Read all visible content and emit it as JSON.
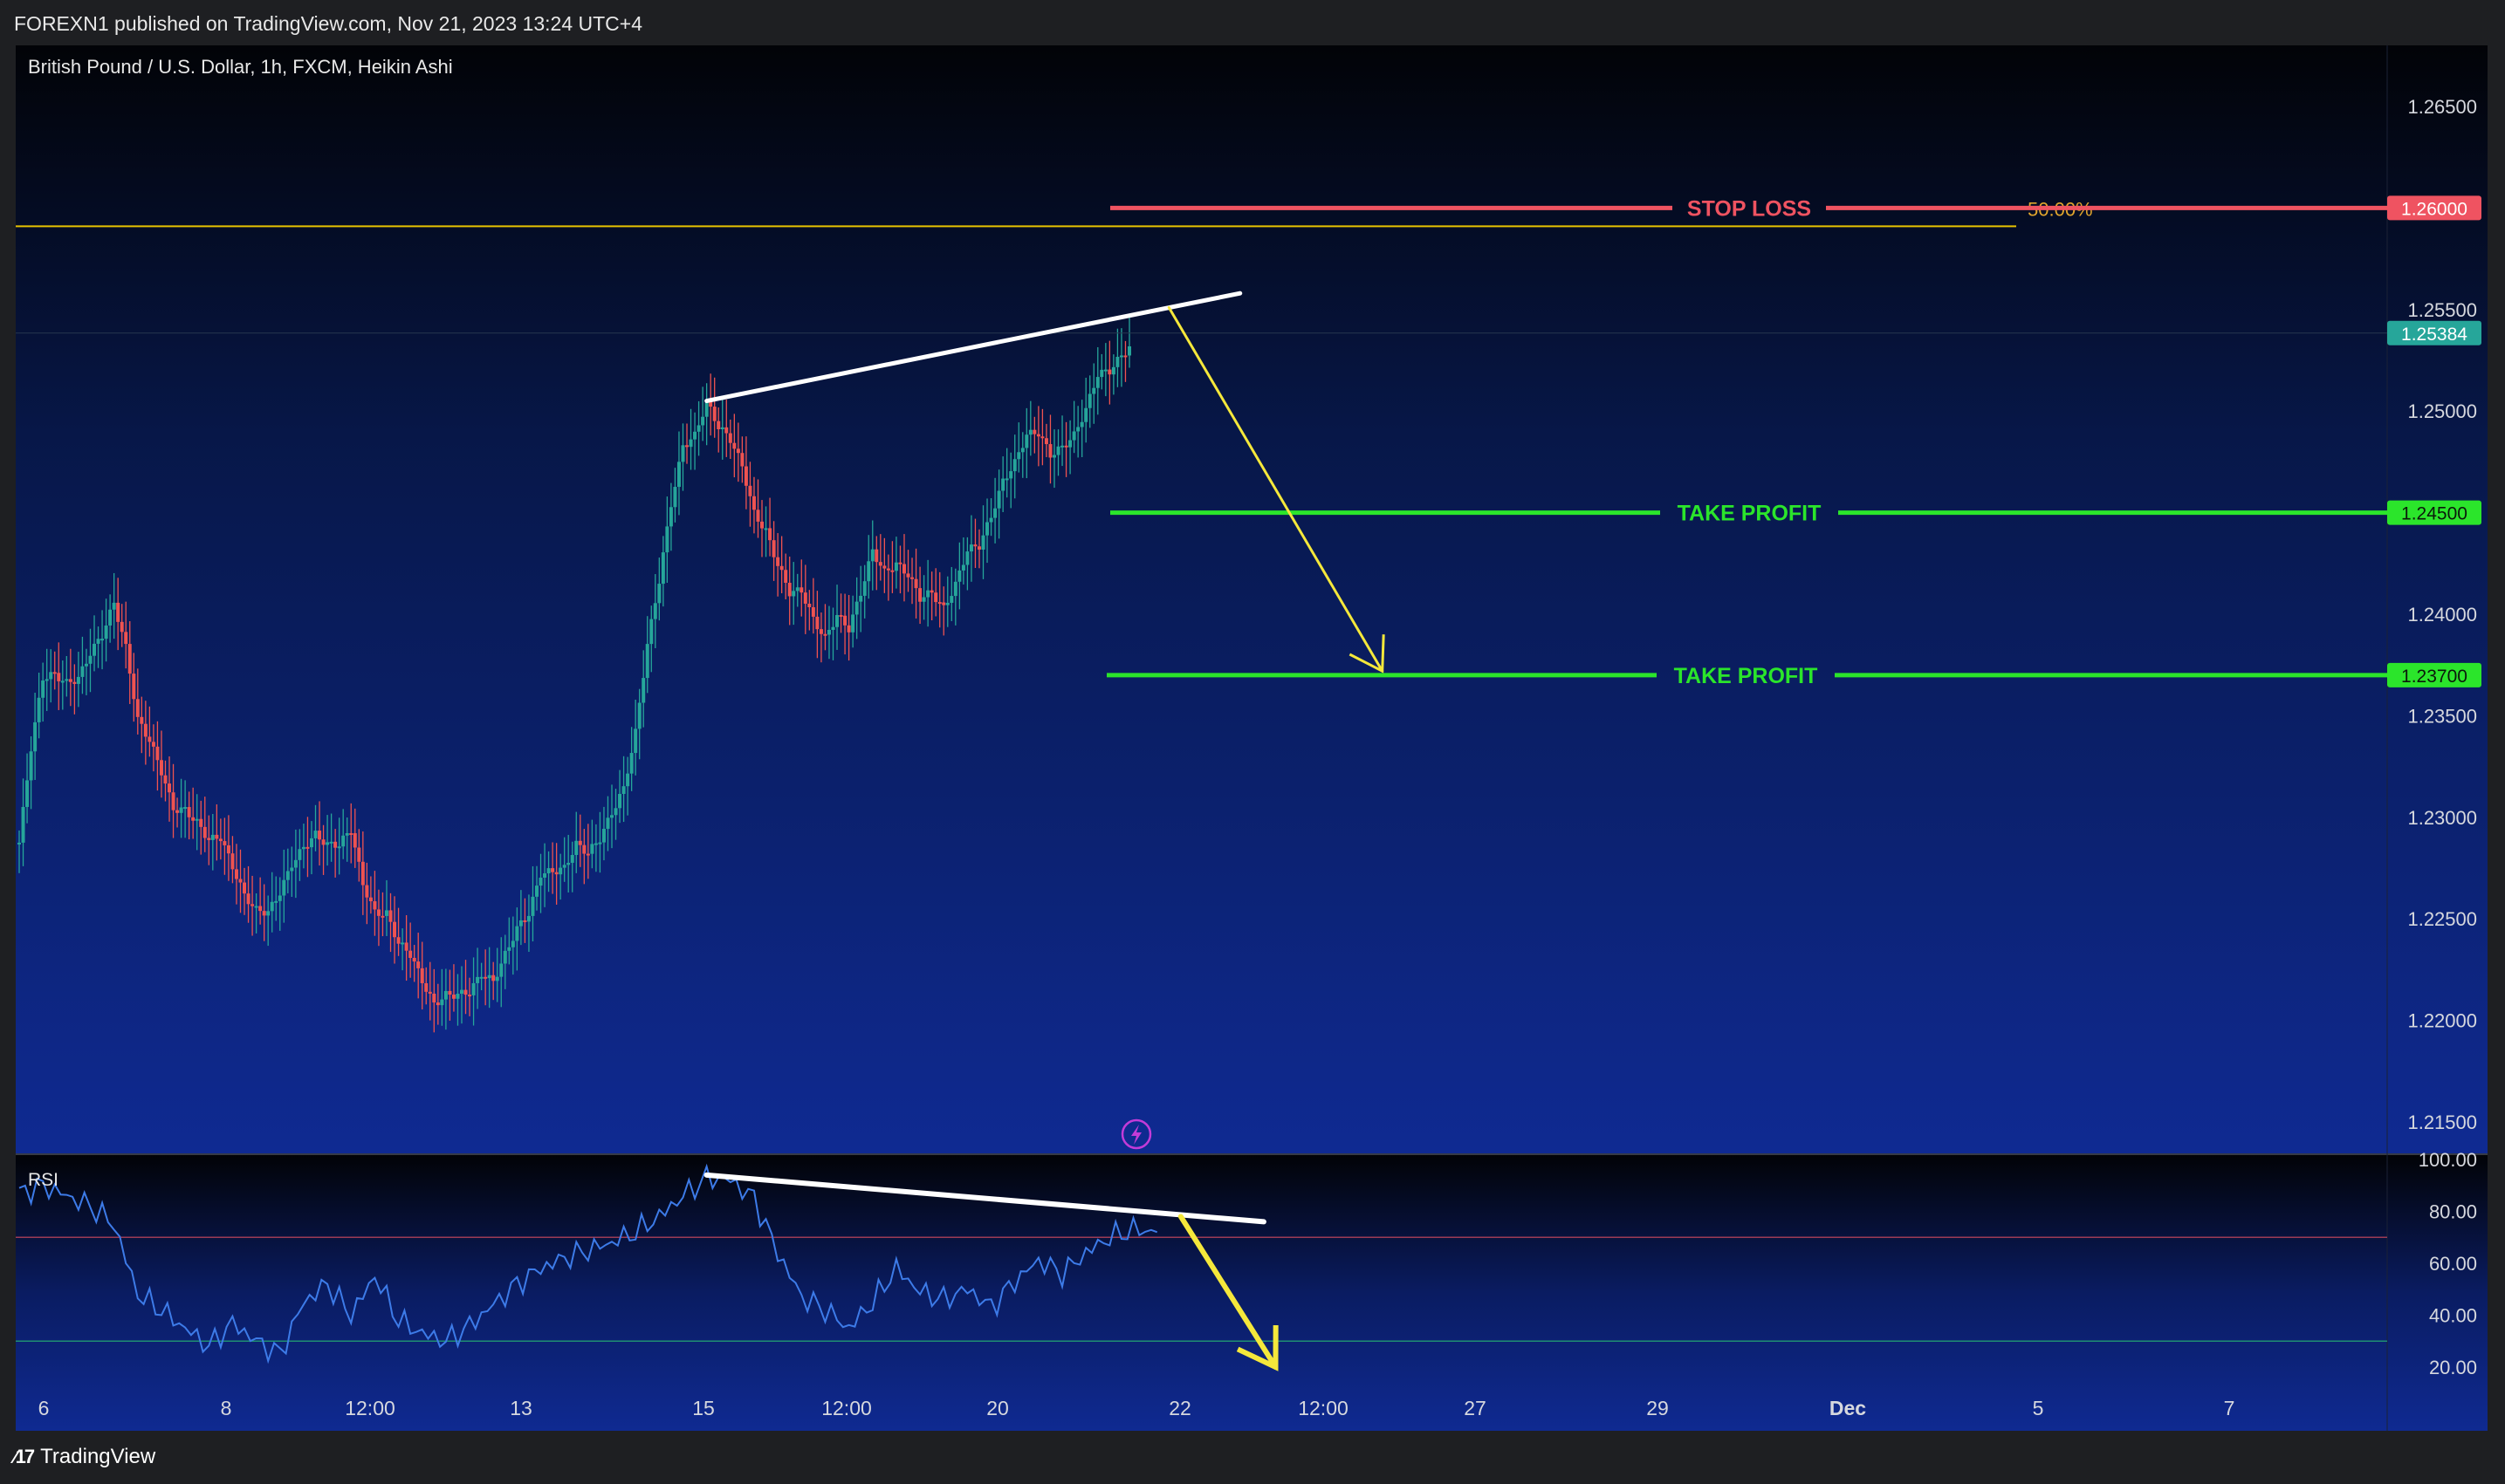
{
  "header": {
    "publish_line": "FOREXN1 published on TradingView.com, Nov 21, 2023 13:24 UTC+4"
  },
  "footer": {
    "brand_icon": "tradingview-logo-icon",
    "brand_label": "TradingView"
  },
  "colors": {
    "background_top": "#020307",
    "background_bottom": "#0f2a92",
    "up_candle": "#26a69a",
    "down_candle": "#ef5350",
    "stop_loss": "#ef5361",
    "take_profit": "#2be52b",
    "trend_line": "#ffffff",
    "arrow": "#f5e83b",
    "fib_line": "#e6c200",
    "rsi_line": "#3d7be8",
    "last_price": "#26a69a"
  },
  "chart_data": [
    {
      "type": "candlestick",
      "title": "British Pound / U.S. Dollar, 1h, FXCM, Heikin Ashi",
      "symbol": "British Pound / U.S. Dollar",
      "interval": "1h",
      "source": "FXCM",
      "style": "Heikin Ashi",
      "x_tick_labels": [
        "6",
        "8",
        "12:00",
        "13",
        "15",
        "12:00",
        "20",
        "22",
        "12:00",
        "27",
        "29",
        "Dec",
        "5",
        "7"
      ],
      "y_tick_labels": [
        "1.26500",
        "1.26000",
        "1.25500",
        "1.25000",
        "1.24500",
        "1.24000",
        "1.23500",
        "1.23000",
        "1.22500",
        "1.22000",
        "1.21500"
      ],
      "y_tick_values": [
        1.265,
        1.26,
        1.255,
        1.25,
        1.245,
        1.24,
        1.235,
        1.23,
        1.225,
        1.22,
        1.215
      ],
      "ylim": [
        1.2137,
        1.2673
      ],
      "last_price": {
        "label": "1.25384",
        "value": 1.25384
      },
      "close_path": [
        [
          0,
          1.2285
        ],
        [
          2,
          1.2375
        ],
        [
          4,
          1.2365
        ],
        [
          6,
          1.2375
        ],
        [
          8,
          1.241
        ],
        [
          10,
          1.235
        ],
        [
          12,
          1.232
        ],
        [
          14,
          1.2302
        ],
        [
          16,
          1.229
        ],
        [
          18,
          1.228
        ],
        [
          20,
          1.225
        ],
        [
          22,
          1.226
        ],
        [
          24,
          1.2292
        ],
        [
          26,
          1.2285
        ],
        [
          28,
          1.229
        ],
        [
          30,
          1.2255
        ],
        [
          32,
          1.224
        ],
        [
          34,
          1.222
        ],
        [
          36,
          1.2208
        ],
        [
          38,
          1.2215
        ],
        [
          40,
          1.2225
        ],
        [
          42,
          1.224
        ],
        [
          44,
          1.227
        ],
        [
          46,
          1.228
        ],
        [
          48,
          1.2282
        ],
        [
          50,
          1.23
        ],
        [
          52,
          1.234
        ],
        [
          54,
          1.242
        ],
        [
          56,
          1.2485
        ],
        [
          58,
          1.2498
        ],
        [
          60,
          1.2488
        ],
        [
          62,
          1.2455
        ],
        [
          64,
          1.242
        ],
        [
          66,
          1.241
        ],
        [
          68,
          1.239
        ],
        [
          70,
          1.2395
        ],
        [
          72,
          1.243
        ],
        [
          74,
          1.242
        ],
        [
          76,
          1.2413
        ],
        [
          78,
          1.2405
        ],
        [
          80,
          1.2425
        ],
        [
          82,
          1.245
        ],
        [
          84,
          1.2478
        ],
        [
          86,
          1.2488
        ],
        [
          88,
          1.248
        ],
        [
          90,
          1.25
        ],
        [
          92,
          1.2525
        ],
        [
          94,
          1.2532
        ]
      ],
      "levels": [
        {
          "label": "STOP LOSS",
          "value": 1.26,
          "price_label": "1.26000",
          "color": "#ef5361"
        },
        {
          "label": "TAKE PROFIT",
          "value": 1.245,
          "price_label": "1.24500",
          "color": "#2be52b"
        },
        {
          "label": "TAKE PROFIT",
          "value": 1.237,
          "price_label": "1.23700",
          "color": "#2be52b"
        }
      ],
      "fib_level": {
        "label": "50.00%",
        "value": 1.2591
      },
      "trend_line": {
        "from": [
          58,
          1.2505
        ],
        "to": [
          103,
          1.2558
        ]
      },
      "arrow": {
        "from": [
          97,
          1.2551
        ],
        "to": [
          115,
          1.2372
        ]
      },
      "grid": false
    },
    {
      "type": "line",
      "title": "RSI",
      "y_tick_labels": [
        "100.00",
        "80.00",
        "60.00",
        "40.00",
        "20.00"
      ],
      "y_tick_values": [
        100,
        80,
        60,
        40,
        20
      ],
      "ylim": [
        13,
        103
      ],
      "bands": [
        70,
        30
      ],
      "series": [
        {
          "name": "RSI",
          "x": [
            0,
            2,
            4,
            6,
            8,
            10,
            12,
            14,
            16,
            18,
            20,
            22,
            24,
            26,
            28,
            30,
            32,
            34,
            36,
            38,
            40,
            42,
            44,
            46,
            48,
            50,
            52,
            54,
            56,
            58,
            60,
            62,
            64,
            66,
            68,
            70,
            72,
            74,
            76,
            78,
            80,
            82,
            84,
            86,
            88,
            90,
            92,
            94,
            96
          ],
          "values": [
            87,
            90,
            86,
            82,
            75,
            48,
            42,
            35,
            28,
            37,
            30,
            25,
            45,
            52,
            40,
            55,
            38,
            33,
            30,
            36,
            44,
            52,
            58,
            62,
            65,
            68,
            72,
            78,
            86,
            93,
            92,
            85,
            64,
            47,
            42,
            35,
            45,
            58,
            49,
            46,
            50,
            43,
            53,
            61,
            56,
            64,
            70,
            73,
            72
          ]
        }
      ],
      "trend_line": {
        "from": [
          58,
          94
        ],
        "to": [
          105,
          76
        ]
      },
      "arrow": {
        "from": [
          98,
          78
        ],
        "to": [
          106,
          20
        ]
      },
      "grid": false
    }
  ]
}
